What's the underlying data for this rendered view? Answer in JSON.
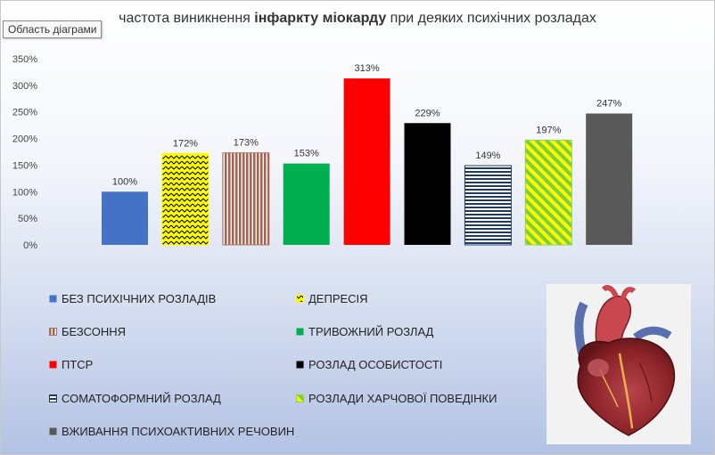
{
  "tooltip": "Область діаграми",
  "title": {
    "part1": "частота виникнення  ",
    "part2": "інфаркту міокарду",
    "part3": " при деяких психічних розладах"
  },
  "chart_data": {
    "type": "bar",
    "title": "частота виникнення  інфаркту міокарду при деяких психічних розладах",
    "categories": [
      "БЕЗ ПСИХІЧНИХ РОЗЛАДІВ",
      "ДЕПРЕСІЯ",
      "БЕЗСОННЯ",
      "ТРИВОЖНИЙ РОЗЛАД",
      "ПТСР",
      "РОЗЛАД ОСОБИСТОСТІ",
      "СОМАТОФОРМНИЙ РОЗЛАД",
      "РОЗЛАДИ ХАРЧОВОЇ ПОВЕДІНКИ",
      "ВЖИВАННЯ ПСИХОАКТИВНИХ РЕЧОВИН"
    ],
    "values": [
      100,
      172,
      173,
      153,
      313,
      229,
      149,
      197,
      247
    ],
    "value_labels": [
      "100%",
      "172%",
      "173%",
      "153%",
      "313%",
      "229%",
      "149%",
      "197%",
      "247%"
    ],
    "y_ticks": [
      "0%",
      "50%",
      "100%",
      "150%",
      "200%",
      "250%",
      "300%",
      "350%"
    ],
    "ylim": [
      0,
      350
    ],
    "grid": false,
    "legend_position": "bottom",
    "colors": [
      "#4472c4",
      "#ffff00",
      "#b0705c",
      "#00b050",
      "#ff0000",
      "#000000",
      "#1f3864",
      "#92d050",
      "#595959"
    ],
    "patterns": [
      "solid",
      "zigzag-yellow-black",
      "vertical-brown",
      "solid",
      "solid",
      "solid",
      "horizontal-navy",
      "diagonal-green-yellow",
      "solid"
    ]
  },
  "image": {
    "name": "heart-illustration"
  }
}
